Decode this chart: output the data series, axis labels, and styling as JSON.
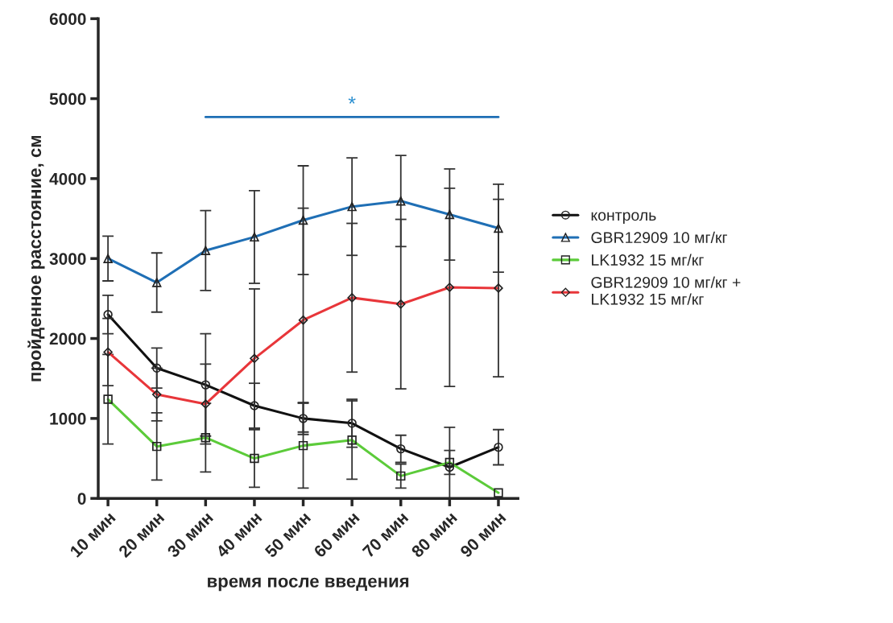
{
  "chart_data": {
    "type": "line",
    "xlabel": "время после введения",
    "ylabel": "пройденное расстояние, см",
    "categories": [
      "10 мин",
      "20 мин",
      "30 мин",
      "40 мин",
      "50 мин",
      "60 мин",
      "70 мин",
      "80 мин",
      "90 мин"
    ],
    "series": [
      {
        "name": "контроль",
        "color": "#111111",
        "marker": "circle",
        "values": [
          2300,
          1630,
          1420,
          1160,
          1000,
          940,
          620,
          390,
          640
        ],
        "errors": [
          240,
          250,
          640,
          280,
          200,
          300,
          170,
          500,
          220
        ]
      },
      {
        "name": "GBR12909 10 мг/кг",
        "color": "#1f6fb5",
        "marker": "triangle",
        "values": [
          3000,
          2700,
          3100,
          3270,
          3480,
          3650,
          3720,
          3550,
          3380
        ],
        "errors": [
          280,
          370,
          500,
          580,
          680,
          610,
          570,
          570,
          550
        ]
      },
      {
        "name": "LK1932 15 мг/кг",
        "color": "#5ccb3a",
        "marker": "square",
        "values": [
          1240,
          650,
          760,
          500,
          660,
          730,
          280,
          450,
          70
        ],
        "errors": [
          560,
          420,
          430,
          360,
          530,
          490,
          150,
          150,
          null
        ]
      },
      {
        "name": "GBR12909 10 мг/кг +\nLK1932 15 мг/кг",
        "color": "#e8363a",
        "marker": "diamond",
        "values": [
          1830,
          1300,
          1180,
          1750,
          2230,
          2510,
          2430,
          2640,
          2630
        ],
        "errors": [
          420,
          330,
          500,
          870,
          1400,
          930,
          1060,
          1240,
          1110
        ]
      }
    ],
    "ylim": [
      0,
      6000
    ],
    "yticks": [
      0,
      1000,
      2000,
      3000,
      4000,
      5000,
      6000
    ],
    "annotations": [
      "*"
    ],
    "grid": false,
    "legend": "right"
  }
}
